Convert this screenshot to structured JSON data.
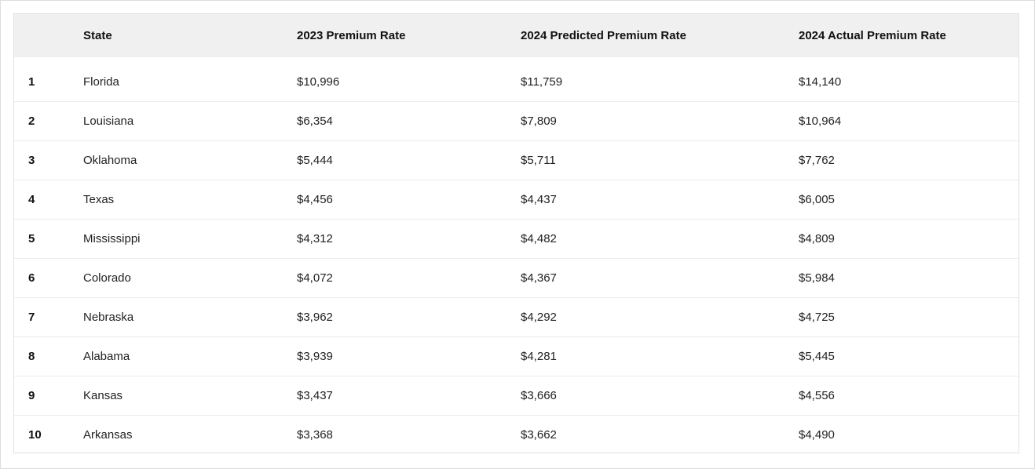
{
  "table": {
    "headers": [
      "",
      "State",
      "2023 Premium Rate",
      "2024 Predicted Premium Rate",
      "2024 Actual Premium Rate"
    ],
    "rows": [
      {
        "rank": "1",
        "state": "Florida",
        "rate_2023": "$10,996",
        "predicted_2024": "$11,759",
        "actual_2024": "$14,140"
      },
      {
        "rank": "2",
        "state": "Louisiana",
        "rate_2023": "$6,354",
        "predicted_2024": "$7,809",
        "actual_2024": "$10,964"
      },
      {
        "rank": "3",
        "state": "Oklahoma",
        "rate_2023": "$5,444",
        "predicted_2024": "$5,711",
        "actual_2024": "$7,762"
      },
      {
        "rank": "4",
        "state": "Texas",
        "rate_2023": "$4,456",
        "predicted_2024": "$4,437",
        "actual_2024": "$6,005"
      },
      {
        "rank": "5",
        "state": "Mississippi",
        "rate_2023": "$4,312",
        "predicted_2024": "$4,482",
        "actual_2024": "$4,809"
      },
      {
        "rank": "6",
        "state": "Colorado",
        "rate_2023": "$4,072",
        "predicted_2024": "$4,367",
        "actual_2024": "$5,984"
      },
      {
        "rank": "7",
        "state": "Nebraska",
        "rate_2023": "$3,962",
        "predicted_2024": "$4,292",
        "actual_2024": "$4,725"
      },
      {
        "rank": "8",
        "state": "Alabama",
        "rate_2023": "$3,939",
        "predicted_2024": "$4,281",
        "actual_2024": "$5,445"
      },
      {
        "rank": "9",
        "state": "Kansas",
        "rate_2023": "$3,437",
        "predicted_2024": "$3,666",
        "actual_2024": "$4,556"
      },
      {
        "rank": "10",
        "state": "Arkansas",
        "rate_2023": "$3,368",
        "predicted_2024": "$3,662",
        "actual_2024": "$4,490"
      }
    ]
  }
}
